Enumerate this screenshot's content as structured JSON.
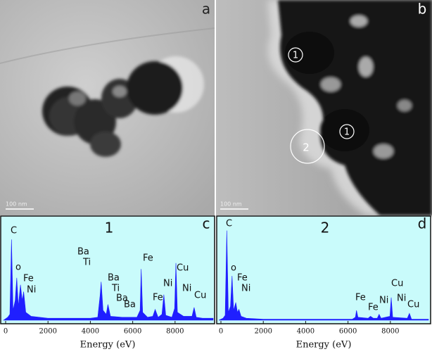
{
  "images": [
    {
      "label": "a",
      "scale_bar": "100 nm"
    },
    {
      "label": "b",
      "scale_bar": "100 nm",
      "markers": [
        "1",
        "1",
        "2"
      ]
    }
  ],
  "chart_data": [
    {
      "type": "area",
      "title": "1",
      "panel_label": "c",
      "xlabel": "Energy (eV)",
      "color": "#1f1fff",
      "background": "#c9fbfb",
      "xlim": [
        -100,
        9800
      ],
      "xticks": [
        0,
        2000,
        4000,
        6000,
        8000
      ],
      "ylim": [
        0,
        100
      ],
      "x": [
        -100,
        100,
        200,
        277,
        350,
        450,
        525,
        600,
        700,
        780,
        850,
        950,
        1200,
        2000,
        3000,
        4000,
        4350,
        4460,
        4510,
        4600,
        4750,
        4830,
        4950,
        5500,
        6200,
        6350,
        6400,
        6470,
        6700,
        6950,
        7060,
        7200,
        7380,
        7470,
        7560,
        7850,
        7980,
        8040,
        8110,
        8400,
        8800,
        8900,
        9000,
        9300,
        9800
      ],
      "values": [
        0,
        3,
        6,
        82,
        10,
        20,
        43,
        14,
        36,
        20,
        29,
        8,
        4,
        2,
        2,
        2,
        3,
        25,
        39,
        10,
        6,
        16,
        4,
        3,
        3,
        10,
        52,
        8,
        3,
        4,
        11,
        3,
        6,
        26,
        5,
        3,
        12,
        58,
        8,
        4,
        4,
        13,
        3,
        2,
        2
      ],
      "annotations": [
        "C",
        "o",
        "Fe",
        "Ni",
        "Ba",
        "Ti",
        "Ba",
        "Ti",
        "Ba",
        "Ba",
        "Fe",
        "Fe",
        "Ni",
        "Cu",
        "Ni",
        "Cu"
      ]
    },
    {
      "type": "area",
      "title": "2",
      "panel_label": "d",
      "xlabel": "Energy (eV)",
      "color": "#1f1fff",
      "background": "#c9fbfb",
      "xlim": [
        -100,
        9800
      ],
      "xticks": [
        0,
        2000,
        4000,
        6000,
        8000
      ],
      "ylim": [
        0,
        100
      ],
      "x": [
        -100,
        100,
        200,
        277,
        350,
        450,
        525,
        600,
        700,
        780,
        850,
        950,
        1200,
        2000,
        4000,
        6200,
        6350,
        6400,
        6470,
        6950,
        7060,
        7200,
        7380,
        7470,
        7560,
        7980,
        8040,
        8110,
        8800,
        8900,
        9000,
        9800
      ],
      "values": [
        0,
        2,
        5,
        91,
        8,
        14,
        45,
        10,
        18,
        8,
        11,
        4,
        2,
        1,
        1,
        1,
        3,
        10,
        3,
        2,
        4,
        2,
        2,
        6,
        2,
        4,
        23,
        3,
        2,
        7,
        1,
        1
      ],
      "annotations": [
        "C",
        "o",
        "Fe",
        "Ni",
        "Fe",
        "Fe",
        "Ni",
        "Cu",
        "Ni",
        "Cu"
      ]
    }
  ]
}
